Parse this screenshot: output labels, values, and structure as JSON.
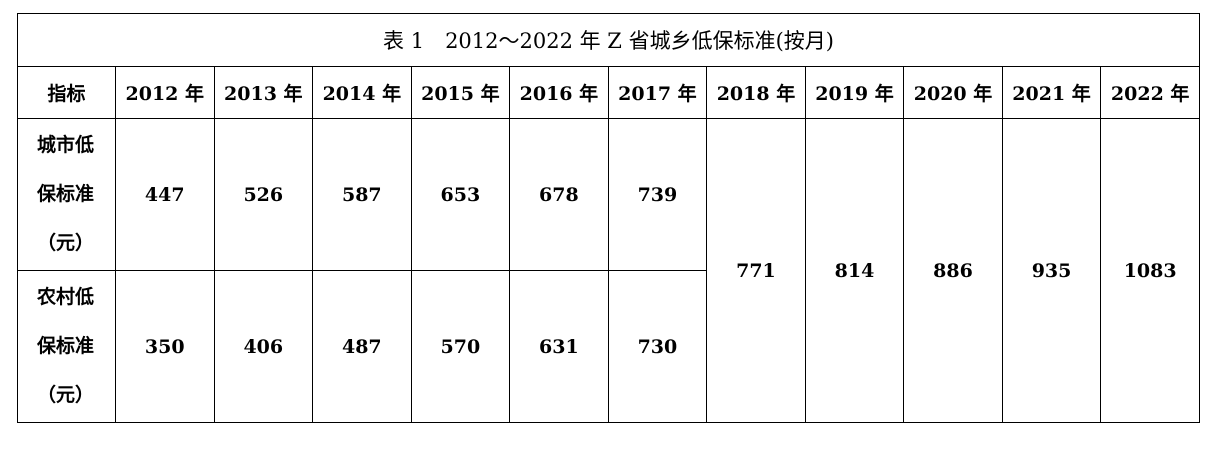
{
  "table": {
    "title": "表 1　2012～2022 年 Z 省城乡低保标准(按月)",
    "header": [
      "指标",
      "2012 年",
      "2013 年",
      "2014 年",
      "2015 年",
      "2016 年",
      "2017 年",
      "2018 年",
      "2019 年",
      "2020 年",
      "2021 年",
      "2022 年"
    ],
    "rows": [
      {
        "label": "城市低保标准（元）",
        "values": [
          447,
          526,
          587,
          653,
          678,
          739
        ]
      },
      {
        "label": "农村低保标准（元）",
        "values": [
          350,
          406,
          487,
          570,
          631,
          730
        ]
      }
    ],
    "merged": [
      771,
      814,
      886,
      935,
      1083
    ]
  }
}
